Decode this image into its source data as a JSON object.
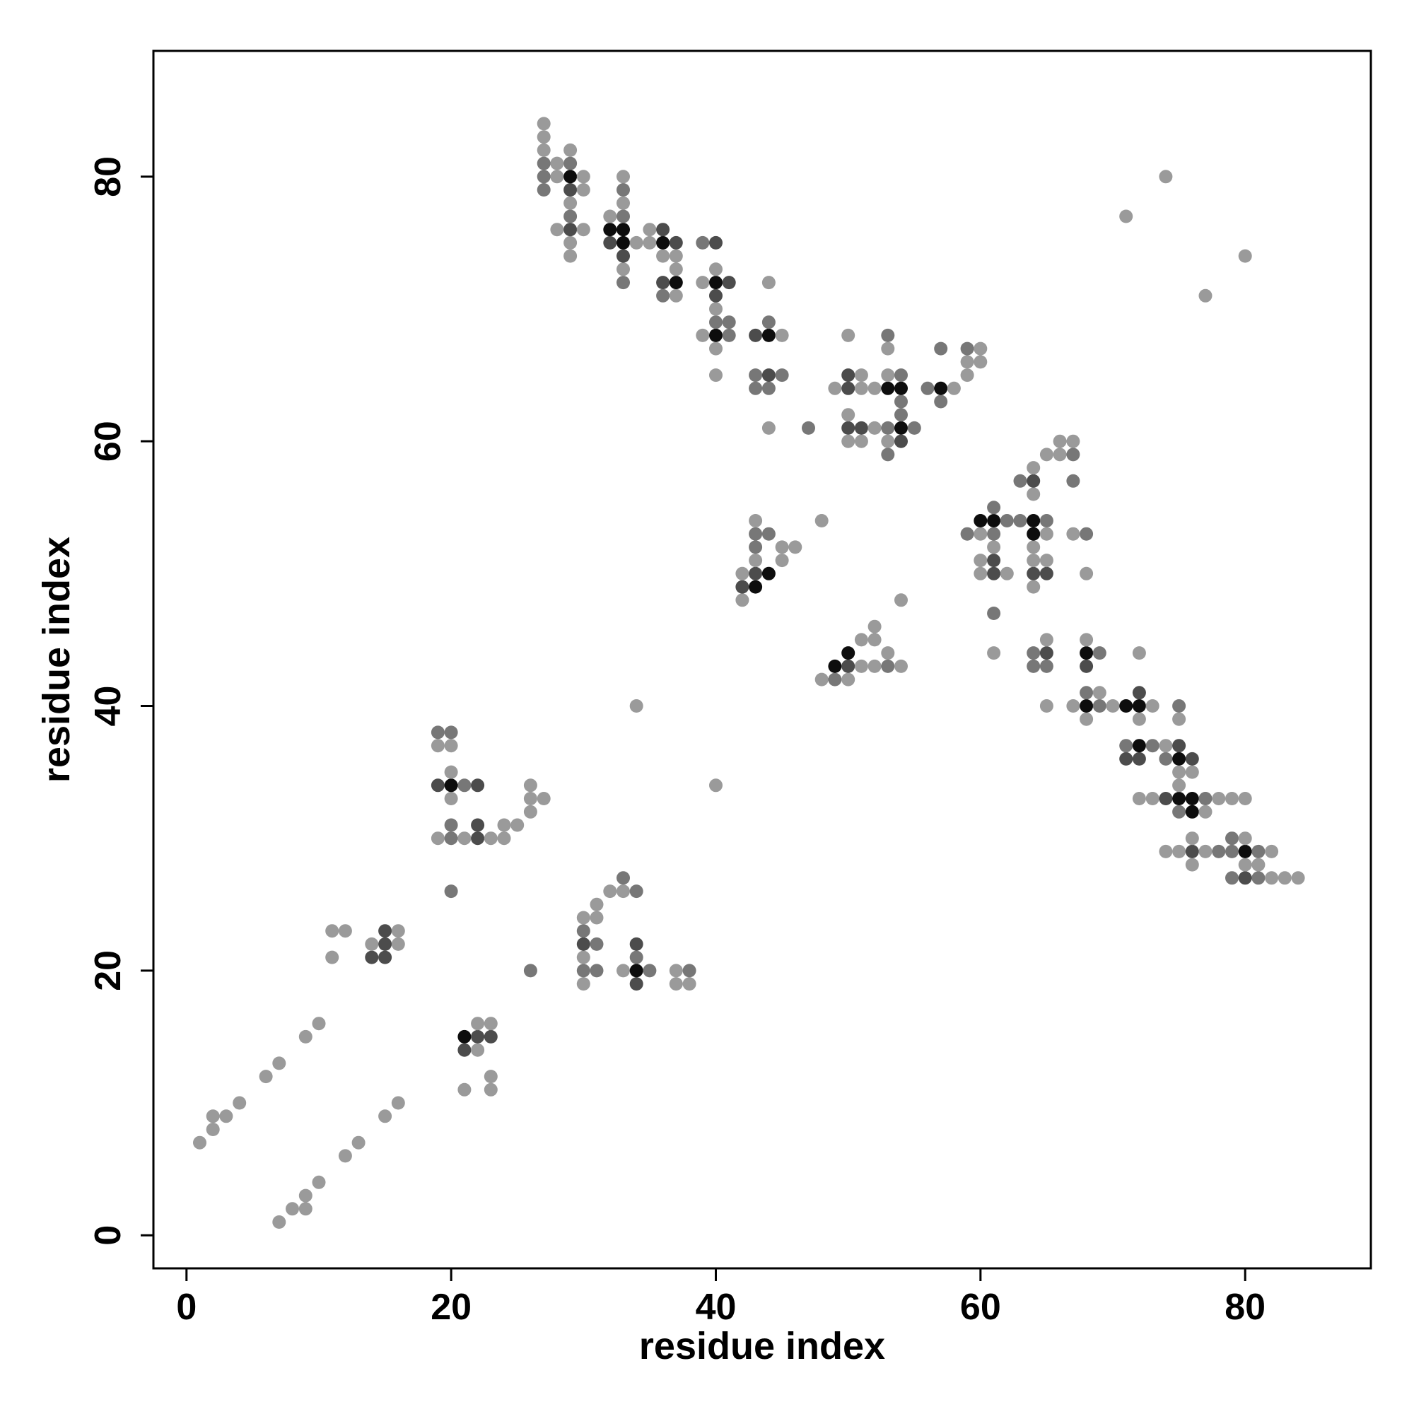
{
  "chart_data": {
    "type": "scatter",
    "title": "",
    "xlabel": "residue index",
    "ylabel": "residue index",
    "xlim": [
      -2.5,
      89.5
    ],
    "ylim": [
      -2.5,
      89.5
    ],
    "xticks": [
      0,
      20,
      40,
      60,
      80
    ],
    "yticks": [
      0,
      20,
      40,
      60,
      80
    ],
    "grid": false,
    "legend": "none",
    "point_color": "#000000",
    "intensity_colors": {
      "1": "#9a9a9a",
      "2": "#777777",
      "3": "#4c4c4c",
      "4": "#0d0d0d"
    },
    "points": [
      [
        1,
        7,
        1
      ],
      [
        2,
        8,
        1
      ],
      [
        2,
        9,
        1
      ],
      [
        3,
        9,
        1
      ],
      [
        4,
        10,
        1
      ],
      [
        6,
        12,
        1
      ],
      [
        7,
        13,
        1
      ],
      [
        9,
        15,
        1
      ],
      [
        10,
        16,
        1
      ],
      [
        7,
        1,
        1
      ],
      [
        8,
        2,
        1
      ],
      [
        9,
        2,
        1
      ],
      [
        9,
        3,
        1
      ],
      [
        10,
        4,
        1
      ],
      [
        12,
        6,
        1
      ],
      [
        13,
        7,
        1
      ],
      [
        15,
        9,
        1
      ],
      [
        16,
        10,
        1
      ],
      [
        11,
        21,
        1
      ],
      [
        11,
        23,
        1
      ],
      [
        12,
        23,
        1
      ],
      [
        14,
        21,
        3
      ],
      [
        14,
        22,
        1
      ],
      [
        15,
        21,
        3
      ],
      [
        15,
        22,
        3
      ],
      [
        15,
        23,
        3
      ],
      [
        16,
        22,
        1
      ],
      [
        16,
        23,
        1
      ],
      [
        19,
        30,
        1
      ],
      [
        19,
        34,
        3
      ],
      [
        19,
        37,
        1
      ],
      [
        19,
        38,
        2
      ],
      [
        20,
        26,
        2
      ],
      [
        20,
        30,
        2
      ],
      [
        20,
        31,
        2
      ],
      [
        20,
        33,
        1
      ],
      [
        20,
        34,
        4
      ],
      [
        20,
        35,
        1
      ],
      [
        20,
        37,
        1
      ],
      [
        20,
        38,
        2
      ],
      [
        21,
        30,
        1
      ],
      [
        21,
        34,
        2
      ],
      [
        22,
        30,
        3
      ],
      [
        22,
        31,
        3
      ],
      [
        22,
        34,
        3
      ],
      [
        23,
        30,
        1
      ],
      [
        24,
        30,
        1
      ],
      [
        24,
        31,
        1
      ],
      [
        25,
        31,
        1
      ],
      [
        26,
        32,
        1
      ],
      [
        26,
        33,
        1
      ],
      [
        26,
        34,
        1
      ],
      [
        27,
        33,
        1
      ],
      [
        21,
        11,
        1
      ],
      [
        21,
        14,
        3
      ],
      [
        21,
        15,
        4
      ],
      [
        22,
        14,
        1
      ],
      [
        22,
        15,
        3
      ],
      [
        22,
        16,
        1
      ],
      [
        23,
        11,
        1
      ],
      [
        23,
        12,
        1
      ],
      [
        23,
        15,
        3
      ],
      [
        23,
        16,
        1
      ],
      [
        26,
        20,
        2
      ],
      [
        30,
        19,
        1
      ],
      [
        30,
        20,
        2
      ],
      [
        30,
        21,
        1
      ],
      [
        30,
        22,
        3
      ],
      [
        30,
        23,
        2
      ],
      [
        30,
        24,
        1
      ],
      [
        31,
        20,
        2
      ],
      [
        31,
        22,
        2
      ],
      [
        31,
        24,
        1
      ],
      [
        31,
        25,
        1
      ],
      [
        32,
        26,
        1
      ],
      [
        33,
        26,
        1
      ],
      [
        33,
        27,
        2
      ],
      [
        34,
        26,
        2
      ],
      [
        33,
        20,
        1
      ],
      [
        34,
        19,
        3
      ],
      [
        34,
        20,
        4
      ],
      [
        34,
        21,
        2
      ],
      [
        34,
        22,
        3
      ],
      [
        35,
        20,
        2
      ],
      [
        37,
        19,
        1
      ],
      [
        37,
        20,
        1
      ],
      [
        38,
        19,
        1
      ],
      [
        38,
        20,
        2
      ],
      [
        34,
        40,
        1
      ],
      [
        27,
        79,
        2
      ],
      [
        27,
        80,
        2
      ],
      [
        27,
        81,
        2
      ],
      [
        27,
        82,
        1
      ],
      [
        27,
        83,
        1
      ],
      [
        27,
        84,
        1
      ],
      [
        28,
        80,
        1
      ],
      [
        28,
        81,
        1
      ],
      [
        28,
        76,
        1
      ],
      [
        29,
        74,
        1
      ],
      [
        29,
        75,
        1
      ],
      [
        29,
        76,
        3
      ],
      [
        29,
        77,
        2
      ],
      [
        29,
        78,
        1
      ],
      [
        29,
        79,
        3
      ],
      [
        29,
        80,
        4
      ],
      [
        29,
        81,
        2
      ],
      [
        29,
        82,
        1
      ],
      [
        30,
        79,
        1
      ],
      [
        30,
        80,
        1
      ],
      [
        30,
        76,
        1
      ],
      [
        32,
        75,
        3
      ],
      [
        32,
        76,
        4
      ],
      [
        32,
        77,
        1
      ],
      [
        33,
        72,
        2
      ],
      [
        33,
        73,
        1
      ],
      [
        33,
        74,
        3
      ],
      [
        33,
        75,
        4
      ],
      [
        33,
        76,
        4
      ],
      [
        33,
        77,
        2
      ],
      [
        33,
        78,
        1
      ],
      [
        33,
        79,
        2
      ],
      [
        33,
        80,
        1
      ],
      [
        34,
        75,
        1
      ],
      [
        35,
        75,
        1
      ],
      [
        35,
        76,
        1
      ],
      [
        36,
        71,
        2
      ],
      [
        36,
        72,
        3
      ],
      [
        36,
        74,
        1
      ],
      [
        36,
        75,
        4
      ],
      [
        36,
        76,
        3
      ],
      [
        37,
        71,
        1
      ],
      [
        37,
        72,
        4
      ],
      [
        37,
        73,
        1
      ],
      [
        37,
        74,
        1
      ],
      [
        37,
        75,
        3
      ],
      [
        39,
        68,
        1
      ],
      [
        39,
        72,
        1
      ],
      [
        39,
        75,
        2
      ],
      [
        40,
        65,
        1
      ],
      [
        40,
        67,
        1
      ],
      [
        40,
        68,
        4
      ],
      [
        40,
        69,
        2
      ],
      [
        40,
        70,
        1
      ],
      [
        40,
        71,
        3
      ],
      [
        40,
        72,
        4
      ],
      [
        40,
        73,
        1
      ],
      [
        40,
        75,
        3
      ],
      [
        41,
        68,
        2
      ],
      [
        41,
        69,
        2
      ],
      [
        41,
        72,
        3
      ],
      [
        43,
        64,
        2
      ],
      [
        43,
        65,
        2
      ],
      [
        43,
        68,
        3
      ],
      [
        44,
        61,
        1
      ],
      [
        44,
        64,
        2
      ],
      [
        44,
        65,
        3
      ],
      [
        44,
        68,
        4
      ],
      [
        44,
        69,
        2
      ],
      [
        44,
        72,
        1
      ],
      [
        45,
        65,
        2
      ],
      [
        45,
        68,
        1
      ],
      [
        47,
        61,
        2
      ],
      [
        49,
        64,
        1
      ],
      [
        50,
        60,
        1
      ],
      [
        50,
        61,
        3
      ],
      [
        50,
        62,
        1
      ],
      [
        50,
        64,
        3
      ],
      [
        50,
        65,
        3
      ],
      [
        50,
        68,
        1
      ],
      [
        51,
        60,
        1
      ],
      [
        51,
        61,
        3
      ],
      [
        51,
        64,
        1
      ],
      [
        51,
        65,
        1
      ],
      [
        52,
        61,
        1
      ],
      [
        52,
        64,
        1
      ],
      [
        53,
        59,
        2
      ],
      [
        53,
        60,
        1
      ],
      [
        53,
        61,
        2
      ],
      [
        53,
        64,
        4
      ],
      [
        53,
        65,
        1
      ],
      [
        53,
        67,
        1
      ],
      [
        53,
        68,
        2
      ],
      [
        54,
        60,
        3
      ],
      [
        54,
        61,
        4
      ],
      [
        54,
        62,
        2
      ],
      [
        54,
        63,
        2
      ],
      [
        54,
        64,
        4
      ],
      [
        54,
        65,
        2
      ],
      [
        55,
        61,
        2
      ],
      [
        56,
        64,
        2
      ],
      [
        57,
        63,
        2
      ],
      [
        57,
        64,
        4
      ],
      [
        57,
        67,
        2
      ],
      [
        58,
        64,
        1
      ],
      [
        59,
        65,
        1
      ],
      [
        59,
        66,
        1
      ],
      [
        59,
        67,
        2
      ],
      [
        60,
        66,
        1
      ],
      [
        60,
        67,
        1
      ],
      [
        40,
        34,
        1
      ],
      [
        42,
        48,
        1
      ],
      [
        42,
        49,
        3
      ],
      [
        42,
        50,
        1
      ],
      [
        43,
        49,
        4
      ],
      [
        43,
        50,
        3
      ],
      [
        43,
        51,
        1
      ],
      [
        43,
        52,
        2
      ],
      [
        43,
        53,
        2
      ],
      [
        43,
        54,
        1
      ],
      [
        44,
        50,
        4
      ],
      [
        44,
        53,
        2
      ],
      [
        45,
        51,
        1
      ],
      [
        45,
        52,
        1
      ],
      [
        46,
        52,
        1
      ],
      [
        48,
        54,
        1
      ],
      [
        48,
        42,
        1
      ],
      [
        49,
        42,
        2
      ],
      [
        49,
        43,
        4
      ],
      [
        50,
        42,
        1
      ],
      [
        50,
        43,
        3
      ],
      [
        50,
        44,
        4
      ],
      [
        51,
        43,
        1
      ],
      [
        51,
        45,
        1
      ],
      [
        52,
        43,
        1
      ],
      [
        52,
        45,
        1
      ],
      [
        52,
        46,
        1
      ],
      [
        53,
        43,
        2
      ],
      [
        53,
        44,
        1
      ],
      [
        54,
        43,
        1
      ],
      [
        54,
        48,
        1
      ],
      [
        59,
        53,
        2
      ],
      [
        60,
        50,
        1
      ],
      [
        60,
        51,
        1
      ],
      [
        60,
        53,
        1
      ],
      [
        60,
        54,
        4
      ],
      [
        61,
        47,
        2
      ],
      [
        61,
        50,
        3
      ],
      [
        61,
        51,
        3
      ],
      [
        61,
        52,
        1
      ],
      [
        61,
        53,
        2
      ],
      [
        61,
        54,
        4
      ],
      [
        61,
        55,
        2
      ],
      [
        62,
        50,
        1
      ],
      [
        62,
        54,
        2
      ],
      [
        61,
        44,
        1
      ],
      [
        63,
        54,
        2
      ],
      [
        63,
        57,
        2
      ],
      [
        64,
        49,
        1
      ],
      [
        64,
        50,
        3
      ],
      [
        64,
        51,
        1
      ],
      [
        64,
        52,
        1
      ],
      [
        64,
        53,
        4
      ],
      [
        64,
        54,
        4
      ],
      [
        64,
        56,
        1
      ],
      [
        64,
        57,
        3
      ],
      [
        64,
        58,
        1
      ],
      [
        65,
        50,
        3
      ],
      [
        65,
        51,
        1
      ],
      [
        65,
        53,
        1
      ],
      [
        65,
        54,
        2
      ],
      [
        65,
        59,
        1
      ],
      [
        66,
        59,
        1
      ],
      [
        66,
        60,
        1
      ],
      [
        67,
        53,
        1
      ],
      [
        67,
        57,
        2
      ],
      [
        67,
        59,
        2
      ],
      [
        67,
        60,
        1
      ],
      [
        68,
        53,
        2
      ],
      [
        68,
        50,
        1
      ],
      [
        64,
        43,
        2
      ],
      [
        64,
        44,
        2
      ],
      [
        65,
        40,
        1
      ],
      [
        65,
        43,
        2
      ],
      [
        65,
        44,
        3
      ],
      [
        65,
        45,
        1
      ],
      [
        67,
        40,
        1
      ],
      [
        68,
        39,
        1
      ],
      [
        68,
        40,
        4
      ],
      [
        68,
        41,
        2
      ],
      [
        68,
        43,
        3
      ],
      [
        68,
        44,
        4
      ],
      [
        68,
        45,
        1
      ],
      [
        69,
        40,
        2
      ],
      [
        69,
        41,
        1
      ],
      [
        69,
        44,
        2
      ],
      [
        70,
        40,
        1
      ],
      [
        71,
        36,
        3
      ],
      [
        71,
        37,
        2
      ],
      [
        71,
        40,
        4
      ],
      [
        72,
        33,
        1
      ],
      [
        72,
        36,
        3
      ],
      [
        72,
        37,
        4
      ],
      [
        72,
        39,
        1
      ],
      [
        72,
        40,
        4
      ],
      [
        72,
        41,
        3
      ],
      [
        72,
        44,
        1
      ],
      [
        73,
        33,
        1
      ],
      [
        73,
        37,
        2
      ],
      [
        73,
        40,
        1
      ],
      [
        74,
        29,
        1
      ],
      [
        74,
        33,
        3
      ],
      [
        74,
        36,
        2
      ],
      [
        74,
        37,
        1
      ],
      [
        75,
        29,
        1
      ],
      [
        75,
        32,
        2
      ],
      [
        75,
        33,
        4
      ],
      [
        75,
        34,
        1
      ],
      [
        75,
        35,
        1
      ],
      [
        75,
        36,
        4
      ],
      [
        75,
        37,
        3
      ],
      [
        75,
        39,
        1
      ],
      [
        75,
        40,
        2
      ],
      [
        76,
        28,
        1
      ],
      [
        76,
        29,
        3
      ],
      [
        76,
        30,
        1
      ],
      [
        76,
        32,
        4
      ],
      [
        76,
        33,
        4
      ],
      [
        76,
        35,
        1
      ],
      [
        76,
        36,
        3
      ],
      [
        77,
        29,
        1
      ],
      [
        77,
        32,
        1
      ],
      [
        77,
        33,
        2
      ],
      [
        78,
        29,
        2
      ],
      [
        78,
        33,
        1
      ],
      [
        79,
        29,
        2
      ],
      [
        79,
        33,
        1
      ],
      [
        79,
        27,
        2
      ],
      [
        79,
        30,
        2
      ],
      [
        80,
        27,
        3
      ],
      [
        80,
        28,
        1
      ],
      [
        80,
        29,
        4
      ],
      [
        80,
        30,
        1
      ],
      [
        80,
        33,
        1
      ],
      [
        81,
        27,
        2
      ],
      [
        81,
        28,
        1
      ],
      [
        81,
        29,
        2
      ],
      [
        82,
        27,
        1
      ],
      [
        82,
        29,
        1
      ],
      [
        83,
        27,
        1
      ],
      [
        84,
        27,
        1
      ],
      [
        71,
        77,
        1
      ],
      [
        74,
        80,
        1
      ],
      [
        77,
        71,
        1
      ],
      [
        80,
        74,
        1
      ]
    ]
  }
}
